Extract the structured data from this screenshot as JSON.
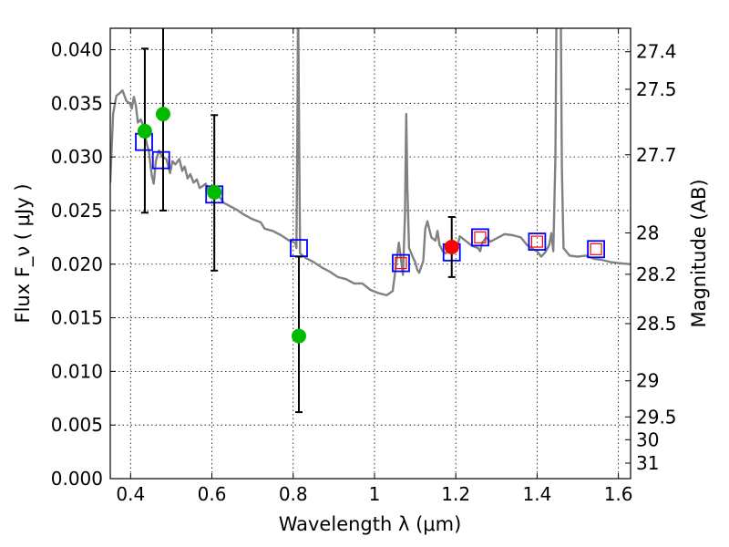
{
  "chart_data": {
    "type": "scatter",
    "xlabel": "Wavelength λ (μm)",
    "ylabel": "Flux F_ν ( μJy )",
    "ylabel_right": "Magnitude (AB)",
    "xlim": [
      0.35,
      1.63
    ],
    "ylim": [
      0.0,
      0.042
    ],
    "grid": true,
    "x_ticks": [
      0.4,
      0.6,
      0.8,
      1.0,
      1.2,
      1.4,
      1.6
    ],
    "x_tick_labels": [
      "0.4",
      "0.6",
      "0.8",
      "1",
      "1.2",
      "1.4",
      "1.6"
    ],
    "y_ticks": [
      0.0,
      0.005,
      0.01,
      0.015,
      0.02,
      0.025,
      0.03,
      0.035,
      0.04
    ],
    "y_tick_labels": [
      "0.000",
      "0.005",
      "0.010",
      "0.015",
      "0.020",
      "0.025",
      "0.030",
      "0.035",
      "0.040"
    ],
    "mag_ticks": [
      27.4,
      27.5,
      27.7,
      28,
      28.2,
      28.5,
      29,
      29.5,
      30,
      31
    ],
    "mag_tick_labels": [
      "27.4",
      "27.5",
      "27.7",
      "28",
      "28.2",
      "28.5",
      "29",
      "29.5",
      "30",
      "31"
    ],
    "series": [
      {
        "type": "line",
        "color": "#808080",
        "points": [
          [
            0.35,
            0.0276
          ],
          [
            0.357,
            0.034
          ],
          [
            0.365,
            0.0357
          ],
          [
            0.372,
            0.0359
          ],
          [
            0.38,
            0.0362
          ],
          [
            0.39,
            0.0352
          ],
          [
            0.398,
            0.035
          ],
          [
            0.403,
            0.0345
          ],
          [
            0.408,
            0.0356
          ],
          [
            0.413,
            0.0348
          ],
          [
            0.418,
            0.0332
          ],
          [
            0.425,
            0.0335
          ],
          [
            0.432,
            0.0328
          ],
          [
            0.44,
            0.0312
          ],
          [
            0.445,
            0.0305
          ],
          [
            0.452,
            0.0283
          ],
          [
            0.457,
            0.0275
          ],
          [
            0.462,
            0.0296
          ],
          [
            0.47,
            0.0306
          ],
          [
            0.478,
            0.03
          ],
          [
            0.488,
            0.0298
          ],
          [
            0.497,
            0.0285
          ],
          [
            0.503,
            0.0296
          ],
          [
            0.51,
            0.0293
          ],
          [
            0.52,
            0.0298
          ],
          [
            0.527,
            0.0287
          ],
          [
            0.533,
            0.0291
          ],
          [
            0.54,
            0.028
          ],
          [
            0.547,
            0.0284
          ],
          [
            0.555,
            0.0276
          ],
          [
            0.563,
            0.0279
          ],
          [
            0.57,
            0.0271
          ],
          [
            0.578,
            0.0273
          ],
          [
            0.585,
            0.0275
          ],
          [
            0.592,
            0.0268
          ],
          [
            0.6,
            0.0267
          ],
          [
            0.61,
            0.0266
          ],
          [
            0.62,
            0.0262
          ],
          [
            0.63,
            0.0257
          ],
          [
            0.64,
            0.0255
          ],
          [
            0.66,
            0.0251
          ],
          [
            0.68,
            0.0246
          ],
          [
            0.7,
            0.0242
          ],
          [
            0.72,
            0.0239
          ],
          [
            0.73,
            0.0233
          ],
          [
            0.75,
            0.0231
          ],
          [
            0.77,
            0.0227
          ],
          [
            0.79,
            0.0222
          ],
          [
            0.805,
            0.022
          ],
          [
            0.808,
            0.0215
          ],
          [
            0.81,
            0.0306
          ],
          [
            0.812,
            0.045
          ],
          [
            0.815,
            0.0306
          ],
          [
            0.817,
            0.021
          ],
          [
            0.83,
            0.0206
          ],
          [
            0.85,
            0.0202
          ],
          [
            0.87,
            0.0197
          ],
          [
            0.89,
            0.0193
          ],
          [
            0.91,
            0.0188
          ],
          [
            0.93,
            0.0186
          ],
          [
            0.95,
            0.0182
          ],
          [
            0.97,
            0.0182
          ],
          [
            0.99,
            0.0176
          ],
          [
            1.01,
            0.0173
          ],
          [
            1.03,
            0.0171
          ],
          [
            1.045,
            0.0175
          ],
          [
            1.055,
            0.0205
          ],
          [
            1.06,
            0.022
          ],
          [
            1.065,
            0.0205
          ],
          [
            1.07,
            0.019
          ],
          [
            1.075,
            0.0245
          ],
          [
            1.078,
            0.034
          ],
          [
            1.081,
            0.027
          ],
          [
            1.085,
            0.0215
          ],
          [
            1.095,
            0.0206
          ],
          [
            1.1,
            0.0202
          ],
          [
            1.105,
            0.0195
          ],
          [
            1.11,
            0.0192
          ],
          [
            1.12,
            0.0203
          ],
          [
            1.125,
            0.0233
          ],
          [
            1.13,
            0.024
          ],
          [
            1.14,
            0.0225
          ],
          [
            1.15,
            0.0222
          ],
          [
            1.155,
            0.0231
          ],
          [
            1.16,
            0.0218
          ],
          [
            1.168,
            0.0212
          ],
          [
            1.175,
            0.021
          ],
          [
            1.19,
            0.0215
          ],
          [
            1.2,
            0.0212
          ],
          [
            1.205,
            0.0218
          ],
          [
            1.21,
            0.0226
          ],
          [
            1.22,
            0.0223
          ],
          [
            1.23,
            0.022
          ],
          [
            1.24,
            0.0217
          ],
          [
            1.255,
            0.0215
          ],
          [
            1.26,
            0.0212
          ],
          [
            1.265,
            0.022
          ],
          [
            1.275,
            0.0225
          ],
          [
            1.285,
            0.0221
          ],
          [
            1.3,
            0.0224
          ],
          [
            1.32,
            0.0228
          ],
          [
            1.34,
            0.0227
          ],
          [
            1.36,
            0.0225
          ],
          [
            1.375,
            0.0218
          ],
          [
            1.39,
            0.0214
          ],
          [
            1.4,
            0.0212
          ],
          [
            1.41,
            0.0207
          ],
          [
            1.42,
            0.0211
          ],
          [
            1.43,
            0.0218
          ],
          [
            1.435,
            0.0229
          ],
          [
            1.44,
            0.0212
          ],
          [
            1.445,
            0.03
          ],
          [
            1.448,
            0.045
          ],
          [
            1.458,
            0.045
          ],
          [
            1.461,
            0.029
          ],
          [
            1.465,
            0.0215
          ],
          [
            1.48,
            0.0208
          ],
          [
            1.5,
            0.0207
          ],
          [
            1.52,
            0.0208
          ],
          [
            1.54,
            0.0205
          ],
          [
            1.56,
            0.0204
          ],
          [
            1.58,
            0.0202
          ],
          [
            1.6,
            0.0201
          ],
          [
            1.63,
            0.02
          ]
        ]
      },
      {
        "type": "marker",
        "marker": "square",
        "edge": "#0000ff",
        "face": "none",
        "points": [
          [
            0.433,
            0.0314
          ],
          [
            0.475,
            0.0297
          ],
          [
            0.606,
            0.0265
          ],
          [
            0.814,
            0.0215
          ],
          [
            1.065,
            0.0201
          ],
          [
            1.19,
            0.0211
          ],
          [
            1.26,
            0.0225
          ],
          [
            1.4,
            0.0221
          ],
          [
            1.545,
            0.0214
          ]
        ]
      },
      {
        "type": "marker",
        "marker": "square",
        "edge": "#ff0000",
        "face": "none",
        "points": [
          [
            1.065,
            0.0201
          ],
          [
            1.26,
            0.0225
          ],
          [
            1.4,
            0.0221
          ],
          [
            1.545,
            0.0214
          ]
        ]
      },
      {
        "type": "marker",
        "marker": "circle",
        "color": "#00bb00",
        "points": [
          {
            "x": 0.435,
            "y": 0.0324,
            "lo": 0.0248,
            "hi": 0.0401
          },
          {
            "x": 0.48,
            "y": 0.034,
            "lo": 0.025,
            "hi": 0.045
          },
          {
            "x": 0.606,
            "y": 0.0267,
            "lo": 0.0194,
            "hi": 0.0339
          },
          {
            "x": 0.814,
            "y": 0.0133,
            "lo": 0.0062,
            "hi": 0.0207
          }
        ]
      },
      {
        "type": "marker",
        "marker": "circle",
        "color": "#ff0000",
        "points": [
          {
            "x": 1.19,
            "y": 0.0216,
            "lo": 0.0188,
            "hi": 0.0244
          }
        ]
      }
    ]
  }
}
